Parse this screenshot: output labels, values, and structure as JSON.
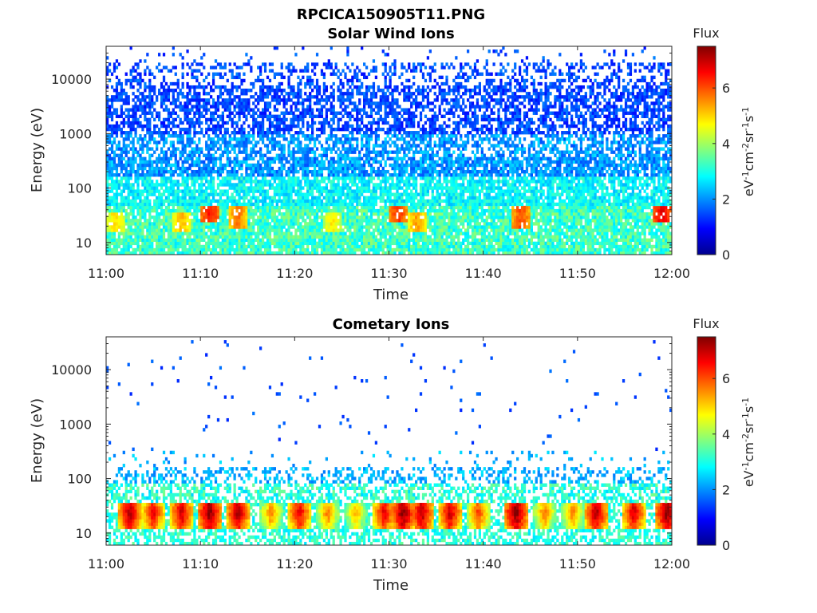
{
  "figure": {
    "title": "RPCICA150905T11.PNG"
  },
  "colorbar": {
    "label": "Flux",
    "ticks": [
      "0",
      "2",
      "4",
      "6"
    ],
    "range": [
      0,
      7.5
    ],
    "colors": [
      "#00008f",
      "#0000ff",
      "#0080ff",
      "#00ffff",
      "#80ff80",
      "#ffff00",
      "#ff8000",
      "#ff0000",
      "#800000"
    ]
  },
  "chart_data": [
    {
      "type": "heatmap",
      "title": "Solar Wind Ions",
      "xlabel": "Time",
      "ylabel": "Energy (eV)",
      "x_ticks": [
        "11:00",
        "11:10",
        "11:20",
        "11:30",
        "11:40",
        "11:50",
        "12:00"
      ],
      "y_ticks": [
        "10",
        "100",
        "1000",
        "10000"
      ],
      "y_scale": "log",
      "ylim": [
        6,
        40000
      ],
      "xlim": [
        "11:00",
        "12:00"
      ],
      "colorbar_label": "Flux",
      "unit_label": "eV-1cm-2sr-1s-1",
      "low_energy_bands": [
        {
          "time": "11:01",
          "energy": 22,
          "flux": 4.8
        },
        {
          "time": "11:08",
          "energy": 22,
          "flux": 5.0
        },
        {
          "time": "11:11",
          "energy": 38,
          "flux": 6.2
        },
        {
          "time": "11:14",
          "energy": 32,
          "flux": 5.5
        },
        {
          "time": "11:24",
          "energy": 22,
          "flux": 4.6
        },
        {
          "time": "11:31",
          "energy": 38,
          "flux": 6.0
        },
        {
          "time": "11:33",
          "energy": 22,
          "flux": 5.2
        },
        {
          "time": "11:44",
          "energy": 32,
          "flux": 5.8
        },
        {
          "time": "11:59",
          "energy": 38,
          "flux": 6.5
        }
      ]
    },
    {
      "type": "heatmap",
      "title": "Cometary Ions",
      "xlabel": "Time",
      "ylabel": "Energy (eV)",
      "x_ticks": [
        "11:00",
        "11:10",
        "11:20",
        "11:30",
        "11:40",
        "11:50",
        "12:00"
      ],
      "y_ticks": [
        "10",
        "100",
        "1000",
        "10000"
      ],
      "y_scale": "log",
      "ylim": [
        6,
        40000
      ],
      "xlim": [
        "11:00",
        "12:00"
      ],
      "colorbar_label": "Flux",
      "unit_label": "eV-1cm-2sr-1s-1",
      "bursts": [
        {
          "time": "11:02.5",
          "flux": 7.0
        },
        {
          "time": "11:05",
          "flux": 6.5
        },
        {
          "time": "11:08",
          "flux": 6.8
        },
        {
          "time": "11:11",
          "flux": 7.3
        },
        {
          "time": "11:14",
          "flux": 7.0
        },
        {
          "time": "11:17.5",
          "flux": 5.5
        },
        {
          "time": "11:20.5",
          "flux": 6.6
        },
        {
          "time": "11:23.5",
          "flux": 5.5
        },
        {
          "time": "11:26.5",
          "flux": 5.2
        },
        {
          "time": "11:29.5",
          "flux": 6.6
        },
        {
          "time": "11:31.5",
          "flux": 7.3
        },
        {
          "time": "11:33.5",
          "flux": 7.0
        },
        {
          "time": "11:36.5",
          "flux": 6.8
        },
        {
          "time": "11:39.5",
          "flux": 6.0
        },
        {
          "time": "11:43.5",
          "flux": 7.3
        },
        {
          "time": "11:46.5",
          "flux": 5.5
        },
        {
          "time": "11:49.5",
          "flux": 5.5
        },
        {
          "time": "11:52",
          "flux": 7.0
        },
        {
          "time": "11:56",
          "flux": 6.8
        },
        {
          "time": "11:59.5",
          "flux": 7.3
        }
      ]
    }
  ]
}
